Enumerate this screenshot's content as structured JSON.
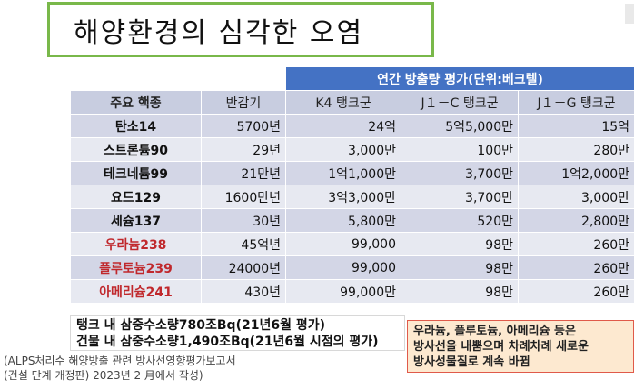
{
  "title": "해양환경의 심각한 오염",
  "table": {
    "group_header": "연간 방출량 평가(단위:베크렐)",
    "columns": [
      "주요 핵종",
      "반감기",
      "K4 탱크군",
      "J１－C 탱크군",
      "J１－G 탱크군"
    ],
    "rows": [
      {
        "name": "탄소14",
        "highlight": false,
        "half_life": "5700년",
        "k4": "24억",
        "j1c": "5억5,000만",
        "j1g": "15억"
      },
      {
        "name": "스트론튬90",
        "highlight": false,
        "half_life": "29년",
        "k4": "3,000만",
        "j1c": "100만",
        "j1g": "280만"
      },
      {
        "name": "테크네튬99",
        "highlight": false,
        "half_life": "21만년",
        "k4": "1억1,000만",
        "j1c": "3,700만",
        "j1g": "1억2,000만"
      },
      {
        "name": "요드129",
        "highlight": false,
        "half_life": "1600만년",
        "k4": "3억3,000만",
        "j1c": "3,700만",
        "j1g": "3,000만"
      },
      {
        "name": "세슘137",
        "highlight": false,
        "half_life": "30년",
        "k4": "5,800만",
        "j1c": "520만",
        "j1g": "2,800만"
      },
      {
        "name": "우라늄238",
        "highlight": true,
        "half_life": "45억년",
        "k4": "99,000",
        "j1c": "98만",
        "j1g": "260만"
      },
      {
        "name": "플루토늄239",
        "highlight": true,
        "half_life": "24000년",
        "k4": "99,000",
        "j1c": "98만",
        "j1g": "260만"
      },
      {
        "name": "아메리슘241",
        "highlight": true,
        "half_life": "430년",
        "k4": "99,000만",
        "j1c": "98만",
        "j1g": "260만"
      }
    ]
  },
  "note_left": {
    "line1": "탱크 내 삼중수소량780조Bq(21년6월 평가)",
    "line2": "건물 내 삼중수소량1,490조Bq(21년6월 시점의 평가)"
  },
  "note_right": {
    "line1": "우라늄, 플루토늄, 아메리슘 등은",
    "line2": "방사선을 내뿜으며 차례차례 새로운",
    "line3": "방사성물질로 계속 바뀜"
  },
  "source": {
    "line1": "(ALPS처리수 해양방출 관련 방사선영향평가보고서",
    "line2": "(건설 단계 개정판) 2023년 2 月에서 작성)"
  },
  "colors": {
    "title_border": "#79b84a",
    "group_header_bg": "#4472c4",
    "highlight_text": "#c0282c",
    "note_right_bg": "#fde9d0",
    "note_right_border": "#e05a4a"
  }
}
